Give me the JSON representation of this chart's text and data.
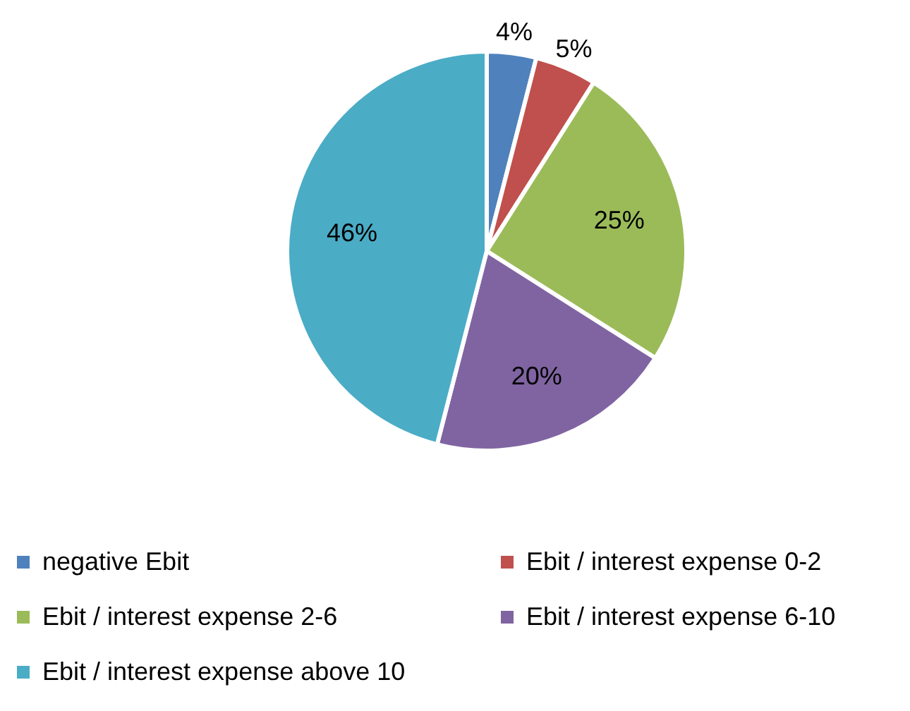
{
  "chart_data": {
    "type": "pie",
    "categories": [
      "negative Ebit",
      "Ebit / interest expense 0-2",
      "Ebit / interest expense 2-6",
      "Ebit / interest expense 6-10",
      "Ebit / interest expense above 10"
    ],
    "values": [
      4,
      5,
      25,
      20,
      46
    ],
    "colors": [
      "#4f81bd",
      "#c0504d",
      "#9bbb59",
      "#8064a2",
      "#4bacc6"
    ],
    "value_labels": [
      "4%",
      "5%",
      "25%",
      "20%",
      "46%"
    ],
    "legend": "bottom"
  }
}
